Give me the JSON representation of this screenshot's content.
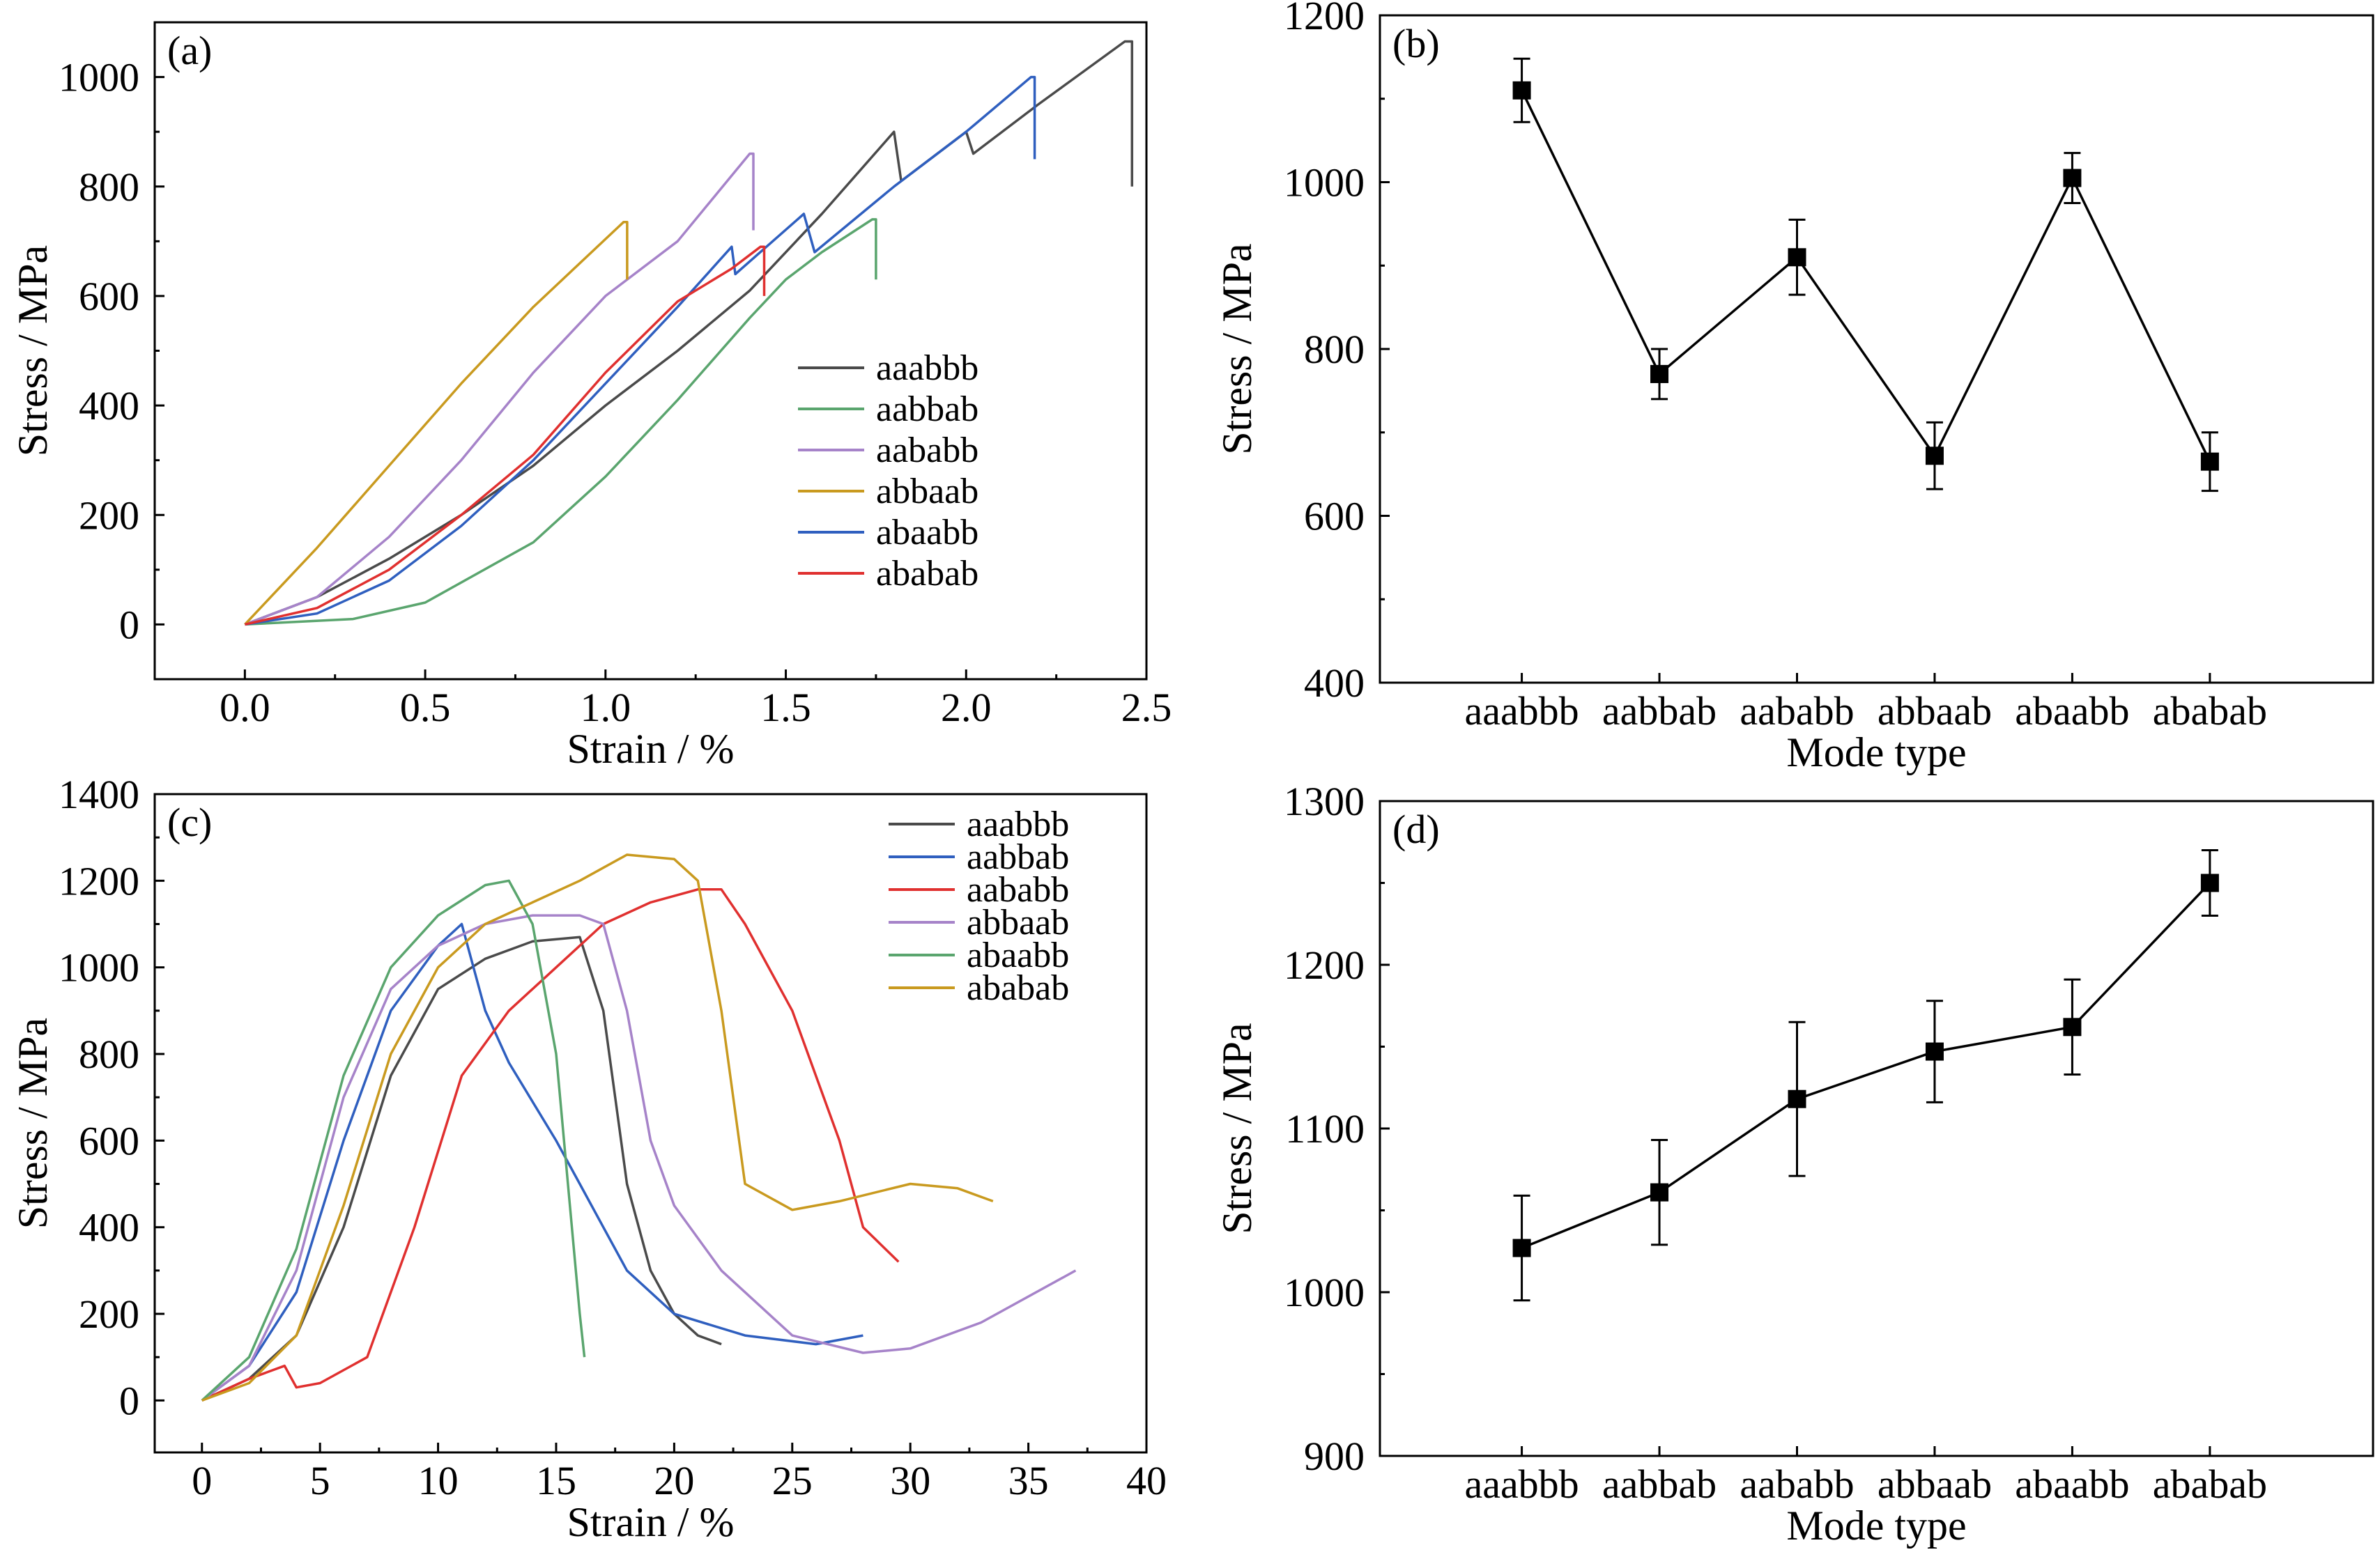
{
  "colors": {
    "aaabbb": "#4a4a4a",
    "aabbab_a": "#5aa56e",
    "aababb_a": "#a683c9",
    "abbaab_a": "#c99a1f",
    "abaabb_a": "#2f5fbf",
    "ababab_a": "#e0302f",
    "aabbab_c": "#2f5fbf",
    "aababb_c": "#e0302f",
    "abbaab_c": "#a683c9",
    "abaabb_c": "#5aa56e",
    "ababab_c": "#c99a1f",
    "point_marker": "#000000"
  },
  "chart_data": [
    {
      "panel": "(a)",
      "type": "line",
      "xlabel": "Strain / %",
      "ylabel": "Stress / MPa",
      "xlim": [
        -0.25,
        2.5
      ],
      "ylim": [
        -100,
        1100
      ],
      "xticks": [
        "0.0",
        "0.5",
        "1.0",
        "1.5",
        "2.0",
        "2.5"
      ],
      "yticks": [
        "0",
        "200",
        "400",
        "600",
        "800",
        "1000"
      ],
      "legend_position": "center-right",
      "grid": false,
      "series": [
        {
          "name": "aaabbb",
          "color_key": "aaabbb",
          "x": [
            0,
            0.2,
            0.4,
            0.6,
            0.8,
            1.0,
            1.2,
            1.4,
            1.6,
            1.8,
            1.82,
            2.0,
            2.02,
            2.2,
            2.44,
            2.46,
            2.46
          ],
          "y": [
            0,
            50,
            120,
            200,
            290,
            400,
            500,
            610,
            750,
            900,
            810,
            900,
            860,
            950,
            1065,
            1065,
            800
          ]
        },
        {
          "name": "aabbab",
          "color_key": "aabbab_a",
          "x": [
            0,
            0.3,
            0.5,
            0.8,
            1.0,
            1.2,
            1.4,
            1.5,
            1.6,
            1.74,
            1.75,
            1.75
          ],
          "y": [
            0,
            10,
            40,
            150,
            270,
            410,
            560,
            630,
            680,
            740,
            740,
            630
          ]
        },
        {
          "name": "aababb",
          "color_key": "aababb_a",
          "x": [
            0,
            0.2,
            0.4,
            0.6,
            0.8,
            1.0,
            1.2,
            1.4,
            1.41,
            1.41
          ],
          "y": [
            0,
            50,
            160,
            300,
            460,
            600,
            700,
            860,
            860,
            720
          ]
        },
        {
          "name": "abbaab",
          "color_key": "abbaab_a",
          "x": [
            0,
            0.2,
            0.4,
            0.6,
            0.8,
            1.05,
            1.06,
            1.06
          ],
          "y": [
            0,
            140,
            290,
            440,
            580,
            735,
            735,
            630
          ]
        },
        {
          "name": "abaabb",
          "color_key": "abaabb_a",
          "x": [
            0,
            0.2,
            0.4,
            0.6,
            0.8,
            1.0,
            1.2,
            1.35,
            1.36,
            1.55,
            1.58,
            1.8,
            2.0,
            2.18,
            2.19,
            2.19
          ],
          "y": [
            0,
            20,
            80,
            180,
            300,
            440,
            580,
            690,
            640,
            750,
            680,
            800,
            900,
            1000,
            1000,
            850
          ]
        },
        {
          "name": "ababab",
          "color_key": "ababab_a",
          "x": [
            0,
            0.2,
            0.4,
            0.6,
            0.8,
            1.0,
            1.2,
            1.35,
            1.43,
            1.44,
            1.44
          ],
          "y": [
            0,
            30,
            100,
            200,
            310,
            460,
            590,
            650,
            690,
            690,
            600
          ]
        }
      ]
    },
    {
      "panel": "(b)",
      "type": "line",
      "xlabel": "Mode type",
      "ylabel": "Stress / MPa",
      "ylim": [
        400,
        1200
      ],
      "yticks": [
        "400",
        "600",
        "800",
        "1000",
        "1200"
      ],
      "categories": [
        "aaabbb",
        "aabbab",
        "aababb",
        "abbaab",
        "abaabb",
        "ababab"
      ],
      "values": [
        1110,
        770,
        910,
        672,
        1005,
        665
      ],
      "errors": [
        38,
        30,
        45,
        40,
        30,
        35
      ]
    },
    {
      "panel": "(c)",
      "type": "line",
      "xlabel": "Strain / %",
      "ylabel": "Stress / MPa",
      "xlim": [
        -2,
        40
      ],
      "ylim": [
        -120,
        1400
      ],
      "xticks": [
        "0",
        "5",
        "10",
        "15",
        "20",
        "25",
        "30",
        "35",
        "40"
      ],
      "yticks": [
        "0",
        "200",
        "400",
        "600",
        "800",
        "1000",
        "1200",
        "1400"
      ],
      "legend_position": "top-right",
      "grid": false,
      "series": [
        {
          "name": "aaabbb",
          "color_key": "aaabbb",
          "x": [
            0,
            2,
            4,
            6,
            8,
            10,
            12,
            14,
            16,
            17,
            17.5,
            18,
            19,
            20,
            21,
            22
          ],
          "y": [
            0,
            50,
            150,
            400,
            750,
            950,
            1020,
            1060,
            1070,
            900,
            700,
            500,
            300,
            200,
            150,
            130
          ]
        },
        {
          "name": "aabbab",
          "color_key": "aabbab_c",
          "x": [
            0,
            2,
            4,
            6,
            8,
            10,
            11,
            12,
            13,
            15,
            16,
            17,
            18,
            20,
            23,
            26,
            28
          ],
          "y": [
            0,
            80,
            250,
            600,
            900,
            1050,
            1100,
            900,
            780,
            600,
            500,
            400,
            300,
            200,
            150,
            130,
            150
          ]
        },
        {
          "name": "aababb",
          "color_key": "aababb_c",
          "x": [
            0,
            2,
            3.5,
            4,
            5,
            7,
            9,
            11,
            13,
            15,
            17,
            19,
            21,
            22,
            23,
            25,
            27,
            28,
            29.5
          ],
          "y": [
            0,
            50,
            80,
            30,
            40,
            100,
            400,
            750,
            900,
            1000,
            1100,
            1150,
            1180,
            1180,
            1100,
            900,
            600,
            400,
            320
          ]
        },
        {
          "name": "abbaab",
          "color_key": "abbaab_c",
          "x": [
            0,
            2,
            4,
            6,
            8,
            10,
            12,
            14,
            16,
            17,
            18,
            19,
            20,
            22,
            25,
            28,
            30,
            33,
            37
          ],
          "y": [
            0,
            80,
            300,
            700,
            950,
            1050,
            1100,
            1120,
            1120,
            1100,
            900,
            600,
            450,
            300,
            150,
            110,
            120,
            180,
            300
          ]
        },
        {
          "name": "abaabb",
          "color_key": "abaabb_c",
          "x": [
            0,
            2,
            4,
            6,
            8,
            10,
            12,
            13,
            14,
            15,
            15.5,
            16,
            16.2
          ],
          "y": [
            0,
            100,
            350,
            750,
            1000,
            1120,
            1190,
            1200,
            1100,
            800,
            500,
            200,
            100
          ]
        },
        {
          "name": "ababab",
          "color_key": "ababab_c",
          "x": [
            0,
            2,
            4,
            6,
            8,
            10,
            12,
            14,
            16,
            18,
            20,
            21,
            22,
            23,
            25,
            27,
            30,
            32,
            33.5
          ],
          "y": [
            0,
            40,
            150,
            450,
            800,
            1000,
            1100,
            1150,
            1200,
            1260,
            1250,
            1200,
            900,
            500,
            440,
            460,
            500,
            490,
            460
          ]
        }
      ]
    },
    {
      "panel": "(d)",
      "type": "line",
      "xlabel": "Mode type",
      "ylabel": "Stress / MPa",
      "ylim": [
        900,
        1300
      ],
      "yticks": [
        "900",
        "1000",
        "1100",
        "1200",
        "1300"
      ],
      "categories": [
        "aaabbb",
        "aabbab",
        "aababb",
        "abbaab",
        "abaabb",
        "ababab"
      ],
      "values": [
        1027,
        1061,
        1118,
        1147,
        1162,
        1250
      ],
      "errors": [
        32,
        32,
        47,
        31,
        29,
        20
      ]
    }
  ]
}
